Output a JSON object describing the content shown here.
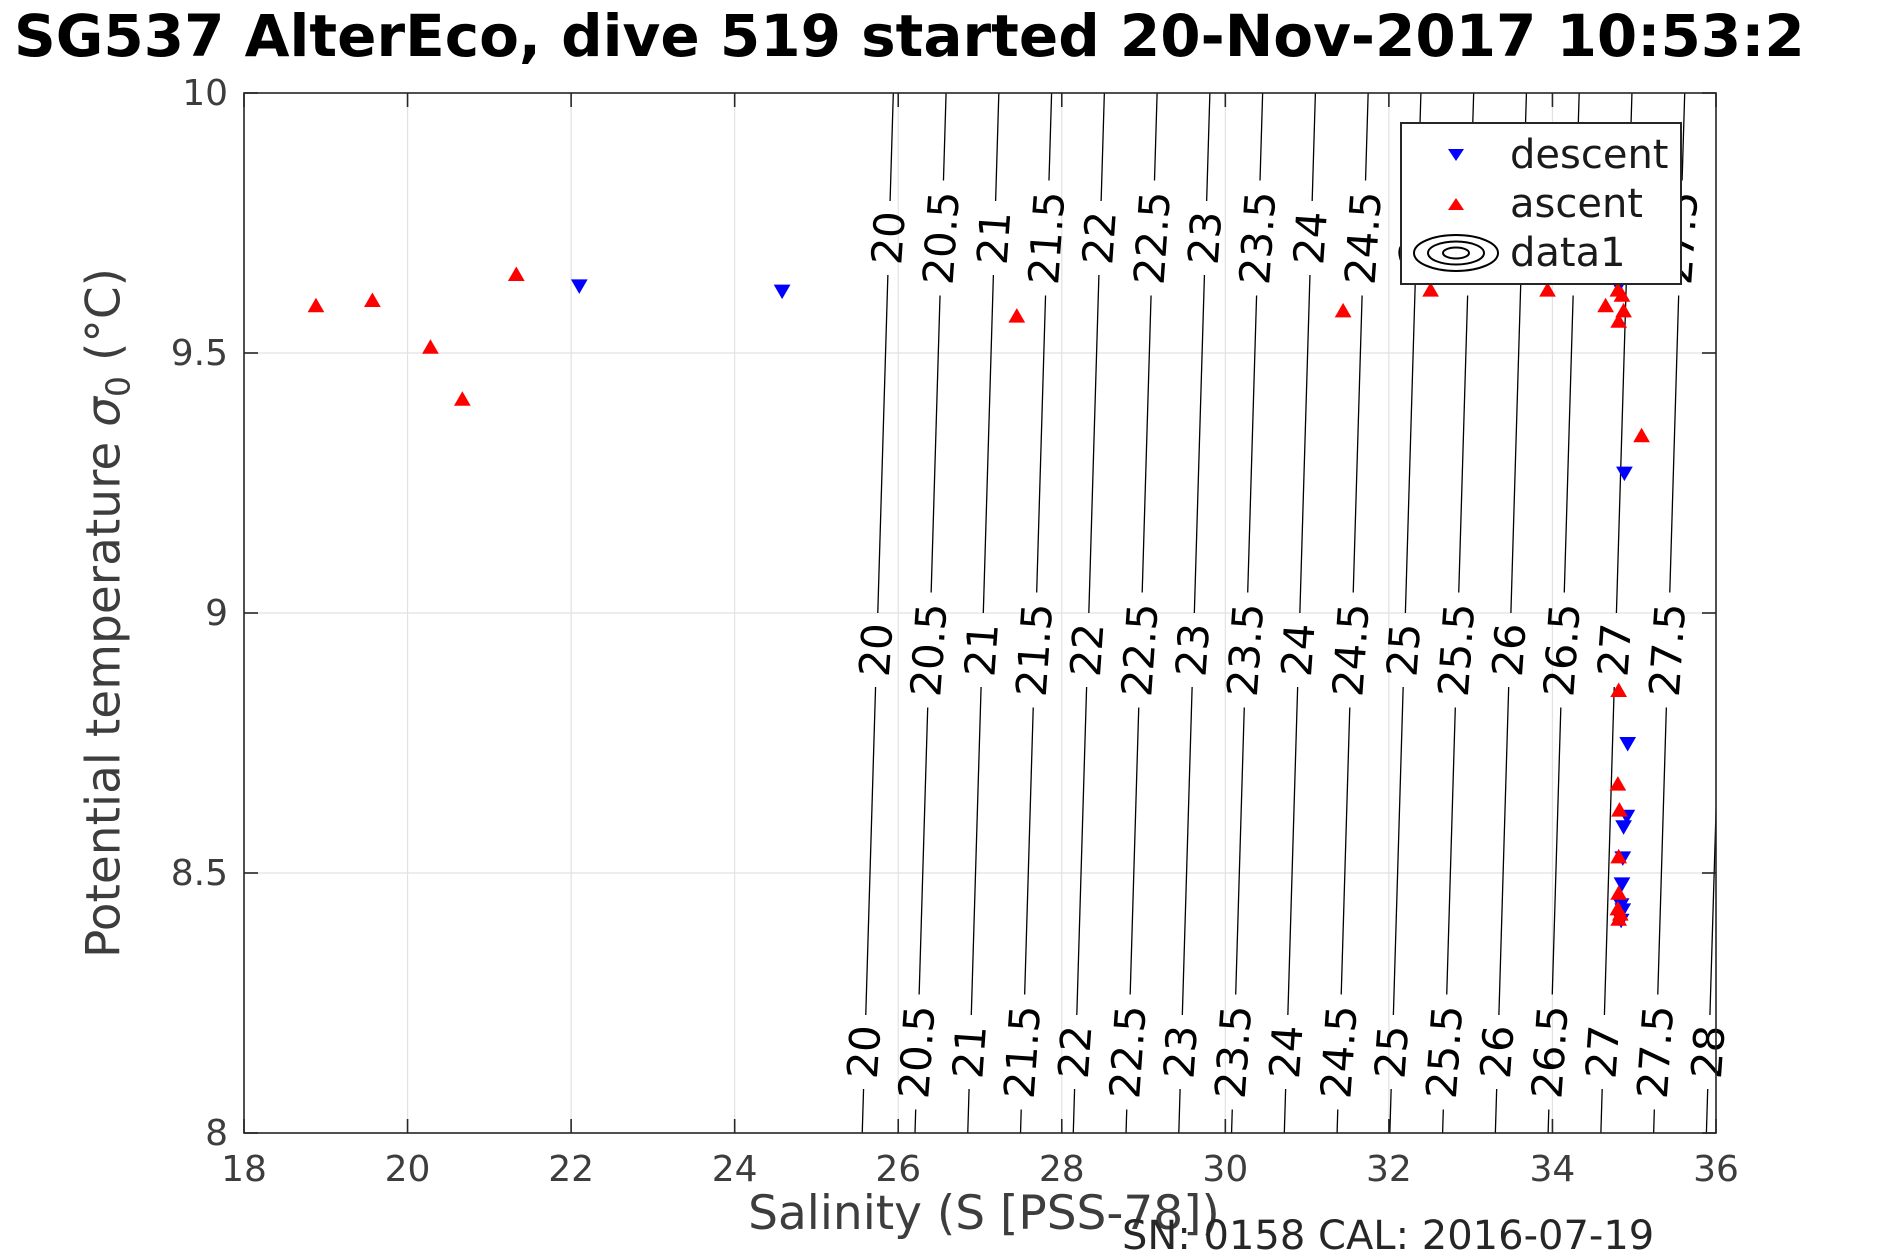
{
  "title": "SG537 AlterEco, dive 519 started 20-Nov-2017 10:53:2",
  "footer": {
    "sn_cal": "SN: 0158  CAL: 2016-07-19"
  },
  "legend": {
    "position": "upper right",
    "items": [
      {
        "label": "descent",
        "marker": "triangle-down",
        "color": "#0000ff"
      },
      {
        "label": "ascent",
        "marker": "triangle-up",
        "color": "#ff0000"
      },
      {
        "label": "data1",
        "marker": "contour-rings",
        "color": "#000000"
      }
    ]
  },
  "chart_data": {
    "type": "scatter",
    "title": "SG537 AlterEco, dive 519 started 20-Nov-2017 10:53:2",
    "xlabel": "Salinity (S [PSS-78])",
    "ylabel": "Potential temperature σ₀ (°C)",
    "ylabel_parts": {
      "prefix": "Potential temperature ",
      "sigma": "σ",
      "sub": "0",
      "suffix": " (°C)"
    },
    "xlim": [
      18,
      36
    ],
    "ylim": [
      8,
      10
    ],
    "xticks": [
      18,
      20,
      22,
      24,
      26,
      28,
      30,
      32,
      34,
      36
    ],
    "yticks": [
      8,
      8.5,
      9,
      9.5,
      10
    ],
    "grid": true,
    "series": [
      {
        "name": "descent",
        "marker": "triangle-down",
        "color": "#0000ff",
        "points": [
          [
            22.1,
            9.63
          ],
          [
            24.58,
            9.62
          ],
          [
            34.81,
            9.63
          ],
          [
            34.88,
            9.27
          ],
          [
            34.92,
            8.75
          ],
          [
            34.91,
            8.61
          ],
          [
            34.87,
            8.59
          ],
          [
            34.86,
            8.53
          ],
          [
            34.85,
            8.48
          ],
          [
            34.84,
            8.44
          ],
          [
            34.86,
            8.43
          ],
          [
            34.84,
            8.41
          ]
        ]
      },
      {
        "name": "ascent",
        "marker": "triangle-up",
        "color": "#ff0000",
        "points": [
          [
            18.88,
            9.59
          ],
          [
            19.57,
            9.6
          ],
          [
            20.28,
            9.51
          ],
          [
            20.67,
            9.41
          ],
          [
            21.33,
            9.65
          ],
          [
            27.45,
            9.57
          ],
          [
            31.44,
            9.58
          ],
          [
            32.51,
            9.62
          ],
          [
            33.94,
            9.62
          ],
          [
            34.65,
            9.59
          ],
          [
            34.8,
            9.62
          ],
          [
            34.85,
            9.61
          ],
          [
            34.87,
            9.58
          ],
          [
            34.81,
            9.56
          ],
          [
            35.09,
            9.34
          ],
          [
            34.81,
            8.85
          ],
          [
            34.8,
            8.67
          ],
          [
            34.82,
            8.62
          ],
          [
            34.81,
            8.53
          ],
          [
            34.81,
            8.46
          ],
          [
            34.8,
            8.43
          ],
          [
            34.83,
            8.42
          ],
          [
            34.81,
            8.41
          ]
        ]
      }
    ],
    "contours": {
      "name": "data1",
      "description": "sigma-0 density isopycnal lines labeled in three rows",
      "values": [
        20,
        20.5,
        21,
        21.5,
        22,
        22.5,
        23,
        23.5,
        24,
        24.5,
        25,
        25.5,
        26,
        26.5,
        27,
        27.5,
        28
      ]
    }
  }
}
